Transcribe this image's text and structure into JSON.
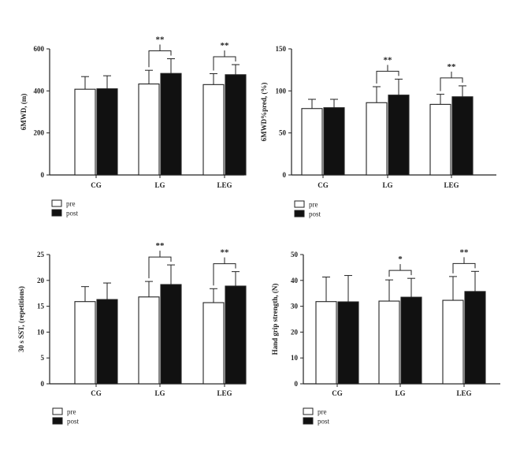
{
  "chart_data": [
    {
      "type": "bar",
      "ylabel": "6MWD, (m)",
      "ylim": [
        0,
        600
      ],
      "yticks": [
        0,
        200,
        400,
        600
      ],
      "categories": [
        "CG",
        "LG",
        "LEG"
      ],
      "series": [
        {
          "name": "pre",
          "color": "#ffffff",
          "values": [
            408,
            433,
            430
          ],
          "errors": [
            60,
            65,
            52
          ]
        },
        {
          "name": "post",
          "color": "#111111",
          "values": [
            410,
            483,
            477
          ],
          "errors": [
            62,
            70,
            48
          ]
        }
      ],
      "significance": [
        "",
        "**",
        "**"
      ],
      "legend": {
        "entries": [
          "pre",
          "post"
        ],
        "position": "bottom-left"
      }
    },
    {
      "type": "bar",
      "ylabel": "6MWD%pred, (%)",
      "ylim": [
        0,
        150
      ],
      "yticks": [
        0,
        50,
        100,
        150
      ],
      "categories": [
        "CG",
        "LG",
        "LEG"
      ],
      "series": [
        {
          "name": "pre",
          "color": "#ffffff",
          "values": [
            79,
            86,
            84
          ],
          "errors": [
            11,
            19,
            12
          ]
        },
        {
          "name": "post",
          "color": "#111111",
          "values": [
            80,
            95,
            93
          ],
          "errors": [
            10,
            19,
            13
          ]
        }
      ],
      "significance": [
        "",
        "**",
        "**"
      ],
      "legend": {
        "entries": [
          "pre",
          "post"
        ],
        "position": "bottom-left"
      }
    },
    {
      "type": "bar",
      "ylabel": "30 s SST, (repetitions)",
      "ylim": [
        0,
        25
      ],
      "yticks": [
        0,
        5,
        10,
        15,
        20,
        25
      ],
      "categories": [
        "CG",
        "LG",
        "LEG"
      ],
      "series": [
        {
          "name": "pre",
          "color": "#ffffff",
          "values": [
            15.9,
            16.8,
            15.7
          ],
          "errors": [
            2.9,
            3.0,
            2.7
          ]
        },
        {
          "name": "post",
          "color": "#111111",
          "values": [
            16.3,
            19.2,
            18.9
          ],
          "errors": [
            3.2,
            3.8,
            2.8
          ]
        }
      ],
      "significance": [
        "",
        "**",
        "**"
      ],
      "legend": {
        "entries": [
          "pre",
          "post"
        ],
        "position": "bottom-left"
      }
    },
    {
      "type": "bar",
      "ylabel": "Hand grip strength, (N)",
      "ylim": [
        0,
        50
      ],
      "yticks": [
        0,
        10,
        20,
        30,
        40,
        50
      ],
      "categories": [
        "CG",
        "LG",
        "LEG"
      ],
      "series": [
        {
          "name": "pre",
          "color": "#ffffff",
          "values": [
            31.8,
            32.0,
            32.3
          ],
          "errors": [
            9.5,
            8.2,
            9.2
          ]
        },
        {
          "name": "post",
          "color": "#111111",
          "values": [
            31.7,
            33.5,
            35.7
          ],
          "errors": [
            10.2,
            7.3,
            7.8
          ]
        }
      ],
      "significance": [
        "",
        "*",
        "**"
      ],
      "legend": {
        "entries": [
          "pre",
          "post"
        ],
        "position": "bottom-left"
      }
    }
  ]
}
